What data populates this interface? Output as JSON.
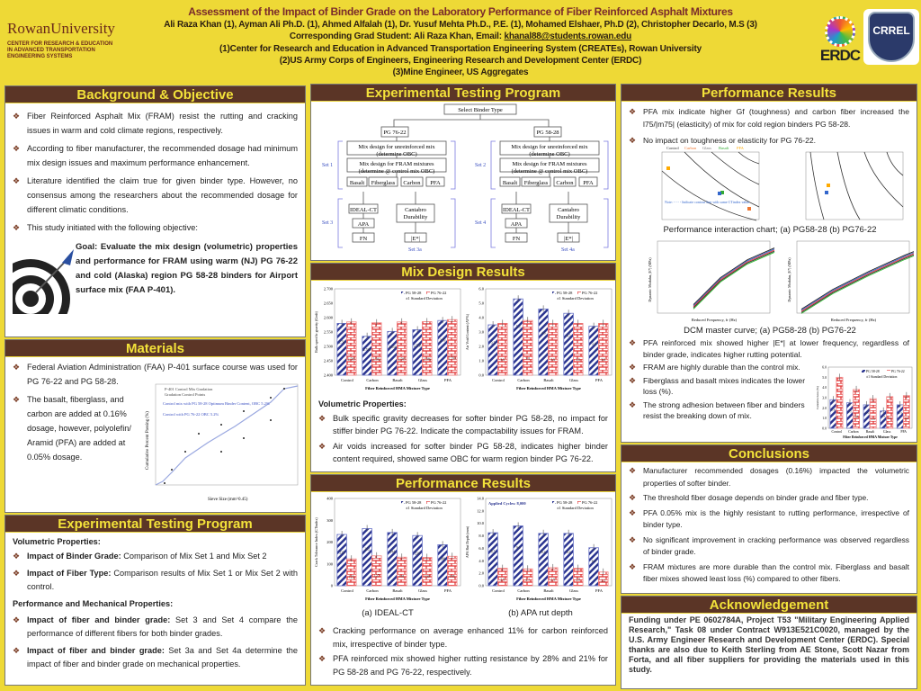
{
  "header": {
    "title": "Assessment of the Impact of Binder Grade on the Laboratory Performance of  Fiber Reinforced Asphalt Mixtures",
    "authors": "Ali Raza Khan (1), Ayman Ali Ph.D. (1), Ahmed Alfalah (1), Dr. Yusuf Mehta Ph.D., P.E. (1), Mohamed Elshaer, Ph.D (2), Christopher Decarlo, M.S (3)",
    "corresponding_prefix": "Corresponding Grad Student: Ali Raza Khan, Email: ",
    "email": "khanal88@students.rowan.edu",
    "affil1": "(1)Center for Research and Education in Advanced Transportation Engineering System (CREATEs), Rowan University",
    "affil2": "(2)US Army Corps of Engineers, Engineering Research and Development Center (ERDC)",
    "affil3": "(3)Mine Engineer, US Aggregates",
    "rowan_logo": "RowanUniversity",
    "rowan_center": "CENTER FOR RESEARCH & EDUCATION IN ADVANCED TRANSPORTATION ENGINEERING SYSTEMS",
    "erdc_logo": "ERDC",
    "crrel_logo": "CRREL"
  },
  "colors": {
    "accent": "#5b3526",
    "heading": "#f3e23a",
    "background": "#eed936",
    "pg5828": "#2b3590",
    "pg7622": "#e03030"
  },
  "background": {
    "heading": "Background & Objective",
    "bullets": [
      "Fiber Reinforced Asphalt Mix (FRAM) resist the rutting and cracking issues in warm and cold climate regions, respectively.",
      "According to fiber manufacturer, the recommended dosage had minimum mix design issues and maximum performance enhancement.",
      "Literature identified the claim true for given binder type. However, no consensus among the researchers about the recommended dosage for different climatic conditions.",
      "This study initiated with the following objective:"
    ],
    "goal": "Goal: Evaluate the mix design (volumetric) properties and performance for FRAM using warm (NJ) PG 76-22 and cold (Alaska) region PG 58-28 binders for Airport surface mix (FAA P-401)."
  },
  "materials": {
    "heading": "Materials",
    "bullet1": "Federal Aviation Administration (FAA) P-401 surface course was used for PG 76-22 and PG 58-28.",
    "bullet2": "The basalt, fiberglass, and carbon are added at 0.16% dosage, however, polyolefin/ Aramid (PFA) are added at 0.05% dosage.",
    "chart": {
      "legend1": "P-401 Control Mix Gradation",
      "legend2": "Gradation Control Points",
      "note1": "Control mix with PG 58-28 Optimum Binder Content, OBC 5.2%",
      "note2": "Control with PG 76-22 OBC 5.2%",
      "ylabel": "Cumulative Percent Passing (%)",
      "xlabel": "Sieve Size (mm^0.45)"
    }
  },
  "program_left": {
    "heading": "Experimental Testing Program",
    "vol_title": "Volumetric Properties:",
    "vol_items": [
      {
        "b": "Impact of Binder Grade:",
        "t": " Comparison of Mix Set 1 and Mix Set 2"
      },
      {
        "b": "Impact of Fiber Type:",
        "t": " Comparison results of Mix Set 1 or Mix Set 2 with control."
      }
    ],
    "perf_title": "Performance and Mechanical Properties:",
    "perf_items": [
      {
        "b": "Impact of fiber and binder grade:",
        "t": " Set 3 and Set 4 compare the performance of different fibers for both binder grades."
      },
      {
        "b": "Impact of fiber and binder grade:",
        "t": " Set 3a and Set 4a determine the impact of fiber and binder grade on mechanical properties."
      }
    ]
  },
  "flowchart": {
    "heading": "Experimental Testing Program",
    "root": "Select Binder Type",
    "branches": [
      {
        "binder": "PG 76-22",
        "set_mix": "Set 1",
        "set_perf": "Set 3",
        "set_mech": "Set 3a"
      },
      {
        "binder": "PG 58-28",
        "set_mix": "Set 2",
        "set_perf": "Set 4",
        "set_mech": "Set 4a"
      }
    ],
    "mix1": "Mix design for unreinforced mix",
    "mix1b": "(determine OBC)",
    "mix2": "Mix design for FRAM mixtures",
    "mix2b": "(determine @ control mix OBC)",
    "fibers": [
      "Basalt",
      "Fiberglass",
      "Carbon",
      "PFA"
    ],
    "tests": [
      "IDEAL-CT",
      "APA",
      "FN"
    ],
    "cantabro": "Cantabro",
    "durability": "Durability",
    "estar": "|E*|"
  },
  "mix_design": {
    "heading": "Mix Design Results",
    "sub": "Volumetric Properties:",
    "bullets": [
      "Bulk specific gravity decreases for softer binder PG 58-28, no impact for stiffer binder PG 76-22. Indicate the compactability issues for FRAM.",
      "Air voids increased for softer binder PG 58-28, indicates higher binder content required, showed same OBC for warm region binder PG 76-22."
    ]
  },
  "performance_mid": {
    "heading": "Performance Results",
    "cap_a": "(a) IDEAL-CT",
    "cap_b": "(b) APA rut depth",
    "bullets": [
      "Cracking performance on average enhanced 11% for carbon reinforced mix, irrespective of binder type.",
      "PFA reinforced mix showed higher rutting resistance by 28% and 21% for PG 58-28 and PG 76-22, respectively."
    ]
  },
  "performance_right": {
    "heading": "Performance Results",
    "bullets_top": [
      "PFA mix indicate higher Gf (toughness) and carbon fiber increased the l75/|m75| (elasticity) of mix for cold region binders PG 58-28.",
      "No impact on toughness or elasticity for PG 76-22."
    ],
    "interaction_caption": "Performance interaction chart; (a) PG58-28 (b) PG76-22",
    "interaction_legend": [
      "Control",
      "Carbon",
      "Glass",
      "Basalt",
      "PFA"
    ],
    "interaction_note": "Note: - - - - Indicate contour line with same CTindex value",
    "dcm_caption": "DCM master curve; (a) PG58-28 (b) PG76-22",
    "dcm_xlabel": "Reduced Frequency, fr (Hz)",
    "dcm_ylabel": "Dynamic Modulus, |E*| (MPa)",
    "bullets_bottom": [
      "PFA reinforced mix showed higher |E*| at lower frequency, regardless of binder grade, indicates higher rutting potential.",
      "FRAM are highly durable than the control mix.",
      "Fiberglass and basalt mixes indicates the lower loss (%).",
      "The strong adhesion between fiber and binders resist the breaking down of mix."
    ]
  },
  "conclusions": {
    "heading": "Conclusions",
    "bullets": [
      "Manufacturer recommended dosages (0.16%) impacted the volumetric properties of softer binder.",
      "The threshold fiber dosage depends on binder grade and fiber type.",
      "PFA 0.05% mix is the highly resistant to rutting performance, irrespective of binder type.",
      "No significant improvement in cracking performance was observed regardless of binder grade.",
      "FRAM mixtures are more durable than the control mix. Fiberglass and basalt fiber mixes showed least loss (%) compared to other fibers."
    ]
  },
  "acknowledgement": {
    "heading": "Acknowledgement",
    "text": "Funding under PE 0602784A, Project T53 \"Military Engineering Applied Research,\" Task 08 under Contract W913E521C0020, managed by the U.S. Army Engineer Research and Development Center (ERDC). Special thanks are also due to Keith Sterling from AE Stone, Scott Nazar from Forta, and all fiber suppliers for providing the materials used in this study."
  },
  "chart_data": [
    {
      "id": "gmb",
      "type": "bar",
      "categories": [
        "Control",
        "Carbon",
        "Basalt",
        "Glass",
        "PFA"
      ],
      "series": [
        {
          "name": "PG 58-28",
          "values": [
            2.58,
            2.535,
            2.552,
            2.558,
            2.59
          ]
        },
        {
          "name": "PG 76-22",
          "values": [
            2.585,
            2.582,
            2.585,
            2.586,
            2.593
          ]
        }
      ],
      "ylabel": "Bulk specific gravity (Gmb)",
      "xlabel": "Fiber Reinforced HMA Mixture Type",
      "ylim": [
        2.4,
        2.7
      ],
      "yticks": [
        "2.400",
        "2.450",
        "2.500",
        "2.550",
        "2.600",
        "2.650",
        "2.700"
      ],
      "legend_extra": "±1 Standard Deviation"
    },
    {
      "id": "av",
      "type": "bar",
      "categories": [
        "Control",
        "Carbon",
        "Basalt",
        "Glass",
        "PFA"
      ],
      "series": [
        {
          "name": "PG 58-28",
          "values": [
            3.5,
            5.3,
            4.6,
            4.3,
            3.4
          ]
        },
        {
          "name": "PG 76-22",
          "values": [
            3.6,
            3.8,
            3.6,
            3.6,
            3.6
          ]
        }
      ],
      "ylabel": "Air Void Content (AV%)",
      "xlabel": "Fiber Reinforced HMA Mixture Type",
      "ylim": [
        0,
        6
      ],
      "yticks": [
        "0.0",
        "1.0",
        "2.0",
        "3.0",
        "4.0",
        "5.0",
        "6.0"
      ],
      "legend_extra": "±1 Standard Deviation"
    },
    {
      "id": "ct",
      "type": "bar",
      "categories": [
        "Control",
        "Carbon",
        "Basalt",
        "Glass",
        "PFA"
      ],
      "series": [
        {
          "name": "PG 58-28",
          "values": [
            235,
            262,
            244,
            230,
            188
          ]
        },
        {
          "name": "PG 76-22",
          "values": [
            123,
            137,
            131,
            130,
            135
          ]
        }
      ],
      "ylabel": "Crack Tolerance Index (CTindex)",
      "xlabel": "Fiber Reinforced HMA Mixture Type",
      "ylim": [
        0,
        400
      ],
      "yticks": [
        "0",
        "100",
        "200",
        "300",
        "400"
      ],
      "legend_extra": "±1 Standard Deviation"
    },
    {
      "id": "apa",
      "type": "bar",
      "categories": [
        "Control",
        "Carbon",
        "Basalt",
        "Glass",
        "PFA"
      ],
      "series": [
        {
          "name": "PG 58-28",
          "values": [
            8.5,
            9.6,
            8.4,
            8.4,
            6.1
          ]
        },
        {
          "name": "PG 76-22",
          "values": [
            2.8,
            2.7,
            2.9,
            2.8,
            2.2
          ]
        }
      ],
      "ylabel": "APA Rut Depth (mm)",
      "xlabel": "Fiber Reinforced HMA Mixture Type",
      "ylim": [
        0,
        14
      ],
      "yticks": [
        "0.0",
        "2.0",
        "4.0",
        "6.0",
        "8.0",
        "10.0",
        "12.0",
        "14.0"
      ],
      "legend_extra": "±1 Standard Deviation",
      "annotation": "Applied Cycles: 8,000"
    },
    {
      "id": "cant",
      "type": "bar",
      "categories": [
        "Control",
        "Carbon",
        "Basalt",
        "Glass",
        "PFA"
      ],
      "series": [
        {
          "name": "PG 58-28",
          "values": [
            2.8,
            2.5,
            2.3,
            1.7,
            2.3
          ]
        },
        {
          "name": "PG 76-22",
          "values": [
            5.0,
            3.8,
            2.9,
            3.1,
            3.2
          ]
        }
      ],
      "ylabel": "Cantabro Loss (%)",
      "xlabel": "Fiber Reinforced HMA Mixture Type",
      "ylim": [
        0,
        6
      ],
      "yticks": [
        "0.0",
        "1.0",
        "2.0",
        "3.0",
        "4.0",
        "5.0",
        "6.0"
      ],
      "legend_extra": "±1 Standard Deviation"
    }
  ]
}
